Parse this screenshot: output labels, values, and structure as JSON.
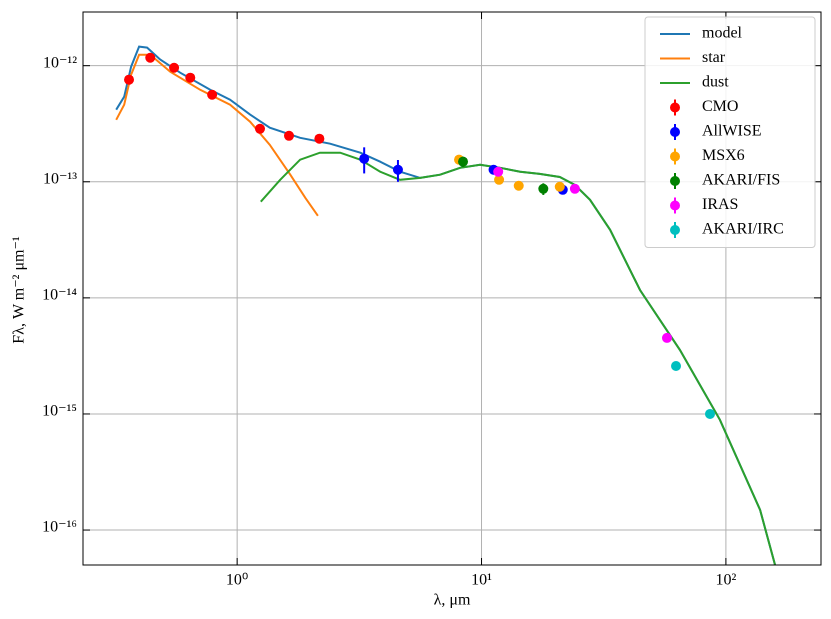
{
  "chart_data": {
    "type": "sed",
    "xlabel": "λ, μm",
    "ylabel": "Fλ, W m⁻² μm⁻¹",
    "xscale": "log",
    "yscale": "log",
    "grid": true,
    "legend": "upper right",
    "xlim": [
      0.234,
      245
    ],
    "ylim": [
      5e-17,
      2.9e-12
    ],
    "xticks": [
      {
        "value": 1,
        "label": "10⁰"
      },
      {
        "value": 10,
        "label": "10¹"
      },
      {
        "value": 100,
        "label": "10²"
      }
    ],
    "yticks": [
      {
        "value": 1e-16,
        "label": "10⁻¹⁶"
      },
      {
        "value": 1e-15,
        "label": "10⁻¹⁵"
      },
      {
        "value": 1e-14,
        "label": "10⁻¹⁴"
      },
      {
        "value": 1e-13,
        "label": "10⁻¹³"
      },
      {
        "value": 1e-12,
        "label": "10⁻¹²"
      }
    ],
    "series": [
      {
        "name": "model",
        "kind": "line",
        "color": "#1f77b4",
        "x": [
          0.32,
          0.345,
          0.368,
          0.397,
          0.428,
          0.484,
          0.585,
          0.776,
          0.936,
          1.13,
          1.36,
          1.81,
          2.4,
          3.19,
          3.85,
          4.64,
          5.61,
          6.77,
          8.17,
          9.87,
          11.9,
          14.4,
          17.3,
          20.9,
          24.1,
          27.8,
          33.6,
          44.5,
          64.8,
          94.5,
          138,
          159
        ],
        "values": [
          4.18e-13,
          5.41e-13,
          9.8e-13,
          1.46e-12,
          1.43e-12,
          1.13e-12,
          8.7e-13,
          6.2e-13,
          5.09e-13,
          3.79e-13,
          2.92e-13,
          2.39e-13,
          2.13e-13,
          1.78e-13,
          1.49e-13,
          1.22e-13,
          1.08e-13,
          1.15e-13,
          1.32e-13,
          1.4e-13,
          1.32e-13,
          1.22e-13,
          1.17e-13,
          1.1e-13,
          9.4e-14,
          7e-14,
          3.86e-14,
          1.17e-14,
          3.56e-15,
          8.9e-16,
          1.49e-16,
          4.99e-17
        ]
      },
      {
        "name": "star",
        "kind": "line",
        "color": "#ff7f0e",
        "x": [
          0.32,
          0.345,
          0.368,
          0.397,
          0.441,
          0.532,
          0.706,
          0.936,
          1.13,
          1.36,
          1.65,
          1.9,
          2.14
        ],
        "values": [
          3.42e-13,
          4.61e-13,
          8.36e-13,
          1.24e-12,
          1.24e-12,
          8.88e-13,
          6.2e-13,
          4.61e-13,
          3.29e-13,
          2.08e-13,
          1.15e-13,
          7.28e-14,
          5.09e-14
        ]
      },
      {
        "name": "dust",
        "kind": "line",
        "color": "#2ca02c",
        "x": [
          1.25,
          1.5,
          1.81,
          2.18,
          2.64,
          3.19,
          3.85,
          4.64,
          5.61,
          6.77,
          8.17,
          9.87,
          11.9,
          14.4,
          17.3,
          20.9,
          24.1,
          27.8,
          33.6,
          44.5,
          64.8,
          94.5,
          138,
          159
        ],
        "values": [
          6.73e-14,
          1.04e-13,
          1.55e-13,
          1.78e-13,
          1.78e-13,
          1.55e-13,
          1.22e-13,
          1.04e-13,
          1.08e-13,
          1.15e-13,
          1.32e-13,
          1.4e-13,
          1.32e-13,
          1.22e-13,
          1.17e-13,
          1.1e-13,
          9.4e-14,
          7e-14,
          3.86e-14,
          1.17e-14,
          3.56e-15,
          8.9e-16,
          1.49e-16,
          4.99e-17
        ]
      },
      {
        "name": "CMO",
        "kind": "scatter",
        "color": "#ff0000",
        "x": [
          0.361,
          0.441,
          0.552,
          0.643,
          0.79,
          1.24,
          1.63,
          2.17
        ],
        "values": [
          7.57e-13,
          1.17e-12,
          9.6e-13,
          7.88e-13,
          5.62e-13,
          2.86e-13,
          2.49e-13,
          2.35e-13
        ]
      },
      {
        "name": "AllWISE",
        "kind": "scatter",
        "color": "#0000ff",
        "x": [
          3.31,
          4.55,
          11.2,
          21.5
        ],
        "values": [
          1.58e-13,
          1.27e-13,
          1.27e-13,
          8.53e-14
        ],
        "errors": [
          4e-14,
          2.7e-14,
          5e-15,
          4e-15
        ]
      },
      {
        "name": "MSX6",
        "kind": "scatter",
        "color": "#ffa500",
        "x": [
          8.09,
          11.8,
          14.2,
          20.9
        ],
        "values": [
          1.55e-13,
          1.04e-13,
          9.24e-14,
          9.06e-14
        ]
      },
      {
        "name": "AKARI/FIS",
        "kind": "scatter",
        "color": "#008000",
        "x": [
          8.4,
          17.9
        ],
        "values": [
          1.49e-13,
          8.7e-14
        ],
        "errors": [
          1.5e-14,
          1e-14
        ]
      },
      {
        "name": "IRAS",
        "kind": "scatter",
        "color": "#ff00ff",
        "x": [
          11.7,
          24.1,
          57.4
        ],
        "values": [
          1.22e-13,
          8.7e-14,
          4.52e-15
        ]
      },
      {
        "name": "AKARI/IRC",
        "kind": "scatter",
        "color": "#00bfbf",
        "x": [
          62.5,
          86.1
        ],
        "values": [
          2.59e-15,
          1e-15
        ]
      }
    ]
  }
}
